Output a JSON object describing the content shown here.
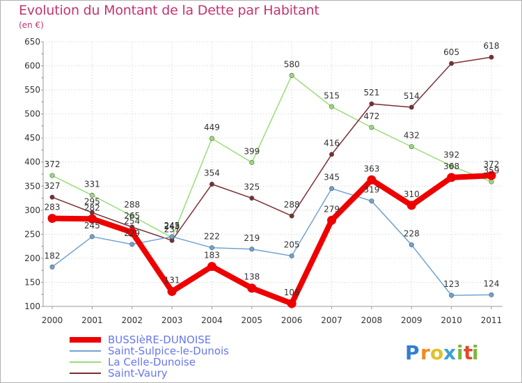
{
  "title": "Evolution du Montant de la Dette par Habitant",
  "unit": "(en €)",
  "logo": {
    "letters": [
      "P",
      "r",
      "o",
      "x",
      "i",
      "t",
      "i"
    ],
    "colors": [
      "#2f7fd0",
      "#f28a1f",
      "#e2c12a",
      "#3aa0d8",
      "#79b93a",
      "#e2492b",
      "#79b93a"
    ]
  },
  "chart_data": {
    "type": "line",
    "title": "Evolution du Montant de la Dette par Habitant",
    "ylabel": "(en €)",
    "xlabel": "",
    "ylim": [
      100,
      650
    ],
    "yticks": [
      100,
      150,
      200,
      250,
      300,
      350,
      400,
      450,
      500,
      550,
      600,
      650
    ],
    "x": [
      "2000",
      "2001",
      "2002",
      "2003",
      "2004",
      "2005",
      "2006",
      "2007",
      "2008",
      "2009",
      "2010",
      "2011"
    ],
    "grid": true,
    "legend": "bottom-left",
    "series": [
      {
        "name": "BUSSIèRE-DUNOISE",
        "color": "#ee0000",
        "values": [
          283,
          282,
          254,
          131,
          183,
          138,
          106,
          279,
          363,
          310,
          368,
          372
        ]
      },
      {
        "name": "Saint-Sulpice-le-Dunois",
        "color": "#6fa3d2",
        "values": [
          182,
          245,
          229,
          245,
          222,
          219,
          205,
          345,
          319,
          228,
          123,
          124
        ]
      },
      {
        "name": "La Celle-Dunoise",
        "color": "#99dd77",
        "values": [
          372,
          331,
          288,
          243,
          449,
          399,
          580,
          515,
          472,
          432,
          392,
          359
        ]
      },
      {
        "name": "Saint-Vaury",
        "color": "#7a2e32",
        "values": [
          327,
          295,
          265,
          237,
          354,
          325,
          288,
          416,
          521,
          514,
          605,
          618
        ]
      }
    ]
  }
}
